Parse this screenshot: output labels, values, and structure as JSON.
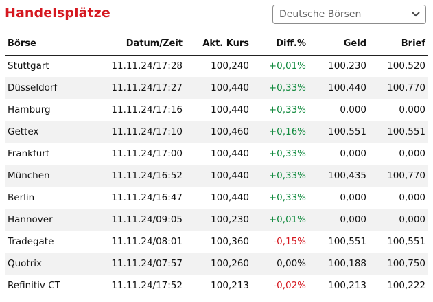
{
  "header": {
    "title": "Handelsplätze",
    "select_value": "Deutsche Börsen"
  },
  "table": {
    "columns": [
      "Börse",
      "Datum/Zeit",
      "Akt. Kurs",
      "Diff.%",
      "Geld",
      "Brief"
    ],
    "rows": [
      {
        "boerse": "Stuttgart",
        "datum": "11.11.24/17:28",
        "kurs": "100,240",
        "diff": "+0,01%",
        "geld": "100,230",
        "brief": "100,520",
        "trend": "pos"
      },
      {
        "boerse": "Düsseldorf",
        "datum": "11.11.24/17:27",
        "kurs": "100,440",
        "diff": "+0,33%",
        "geld": "100,440",
        "brief": "100,770",
        "trend": "pos"
      },
      {
        "boerse": "Hamburg",
        "datum": "11.11.24/17:16",
        "kurs": "100,440",
        "diff": "+0,33%",
        "geld": "0,000",
        "brief": "0,000",
        "trend": "pos"
      },
      {
        "boerse": "Gettex",
        "datum": "11.11.24/17:10",
        "kurs": "100,460",
        "diff": "+0,16%",
        "geld": "100,551",
        "brief": "100,551",
        "trend": "pos"
      },
      {
        "boerse": "Frankfurt",
        "datum": "11.11.24/17:00",
        "kurs": "100,440",
        "diff": "+0,33%",
        "geld": "0,000",
        "brief": "0,000",
        "trend": "pos"
      },
      {
        "boerse": "München",
        "datum": "11.11.24/16:52",
        "kurs": "100,440",
        "diff": "+0,33%",
        "geld": "100,435",
        "brief": "100,770",
        "trend": "pos"
      },
      {
        "boerse": "Berlin",
        "datum": "11.11.24/16:47",
        "kurs": "100,440",
        "diff": "+0,33%",
        "geld": "0,000",
        "brief": "0,000",
        "trend": "pos"
      },
      {
        "boerse": "Hannover",
        "datum": "11.11.24/09:05",
        "kurs": "100,230",
        "diff": "+0,01%",
        "geld": "0,000",
        "brief": "0,000",
        "trend": "pos"
      },
      {
        "boerse": "Tradegate",
        "datum": "11.11.24/08:01",
        "kurs": "100,360",
        "diff": "-0,15%",
        "geld": "100,551",
        "brief": "100,551",
        "trend": "neg"
      },
      {
        "boerse": "Quotrix",
        "datum": "11.11.24/07:57",
        "kurs": "100,260",
        "diff": "0,00%",
        "geld": "100,188",
        "brief": "100,750",
        "trend": "neu"
      },
      {
        "boerse": "Refinitiv CT",
        "datum": "11.11.24/17:52",
        "kurs": "100,213",
        "diff": "-0,02%",
        "geld": "100,213",
        "brief": "100,222",
        "trend": "neg"
      }
    ]
  },
  "colors": {
    "title": "#d51820",
    "positive": "#118a3e",
    "negative": "#d51820",
    "stripe": "#f2f2f2"
  },
  "icons": {
    "select": "chevron-down-icon"
  }
}
